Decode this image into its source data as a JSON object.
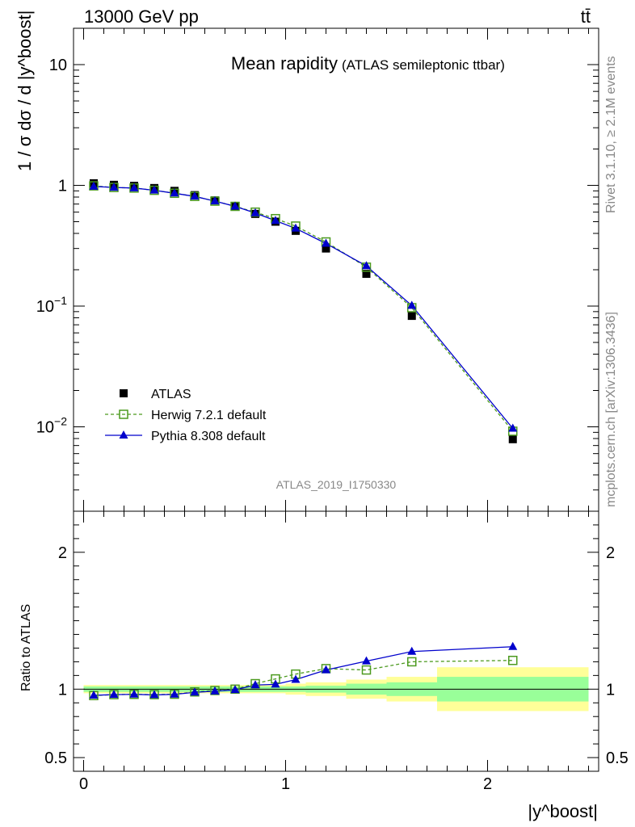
{
  "header": {
    "energy_label": "13000 GeV pp",
    "process_label": "tt̄"
  },
  "side_text": {
    "rivet": "Rivet 3.1.10, ≥ 2.1M events",
    "mcplots": "mcplots.cern.ch [arXiv:1306.3436]"
  },
  "colors": {
    "data": "#000000",
    "herwig": "#4c9a1f",
    "pythia": "#0000cc",
    "band_inner": "#99ff99",
    "band_outer": "#ffff99"
  },
  "chart_data": [
    {
      "type": "scatter",
      "title": "Mean rapidity",
      "subtitle": "(ATLAS semileptonic ttbar)",
      "ylabel": "1 / σ dσ / d |y^boost|",
      "xlabel": "|y^boost|",
      "yscale": "log",
      "ylim": [
        0.002,
        20
      ],
      "xlim": [
        -0.05,
        2.55
      ],
      "y_ticks": [
        {
          "value": 10,
          "label": "10",
          "sup": ""
        },
        {
          "value": 1,
          "label": "1",
          "sup": ""
        },
        {
          "value": 0.1,
          "label": "10",
          "sup": "−1"
        },
        {
          "value": 0.01,
          "label": "10",
          "sup": "−2"
        }
      ],
      "analysis_id": "ATLAS_2019_I1750330",
      "legend_position": "bottom-left",
      "x": [
        0.05,
        0.15,
        0.25,
        0.35,
        0.45,
        0.55,
        0.65,
        0.75,
        0.85,
        0.95,
        1.05,
        1.2,
        1.4,
        1.625,
        2.125
      ],
      "series": [
        {
          "name": "ATLAS",
          "style": "data",
          "values": [
            1.04,
            1.01,
            0.99,
            0.95,
            0.9,
            0.83,
            0.75,
            0.67,
            0.58,
            0.5,
            0.42,
            0.3,
            0.185,
            0.083,
            0.0079
          ]
        },
        {
          "name": "Herwig 7.2.1 default",
          "style": "herwig",
          "values": [
            0.99,
            0.96,
            0.95,
            0.91,
            0.86,
            0.81,
            0.74,
            0.67,
            0.6,
            0.53,
            0.46,
            0.34,
            0.21,
            0.097,
            0.0092
          ]
        },
        {
          "name": "Pythia 8.308 default",
          "style": "pythia",
          "values": [
            0.98,
            0.96,
            0.95,
            0.91,
            0.86,
            0.81,
            0.74,
            0.67,
            0.59,
            0.51,
            0.44,
            0.33,
            0.215,
            0.101,
            0.0097
          ]
        }
      ]
    },
    {
      "type": "scatter",
      "ylabel": "Ratio to ATLAS",
      "xlabel": "|y^boost|",
      "ylim": [
        0.4,
        2.3
      ],
      "xlim": [
        -0.05,
        2.55
      ],
      "y_ticks": [
        0.5,
        1,
        2
      ],
      "y_tick_labels": [
        "0.5",
        "1",
        "2"
      ],
      "x_ticks": [
        0,
        1,
        2
      ],
      "x_tick_labels": [
        "0",
        "1",
        "2"
      ],
      "x": [
        0.05,
        0.15,
        0.25,
        0.35,
        0.45,
        0.55,
        0.65,
        0.75,
        0.85,
        0.95,
        1.05,
        1.2,
        1.4,
        1.625,
        2.125
      ],
      "uncertainty_bands": [
        {
          "x_range": [
            0.0,
            1.0
          ],
          "inner": [
            0.98,
            1.02
          ],
          "outer": [
            0.97,
            1.03
          ]
        },
        {
          "x_range": [
            1.0,
            1.1
          ],
          "inner": [
            0.98,
            1.02
          ],
          "outer": [
            0.96,
            1.04
          ]
        },
        {
          "x_range": [
            1.1,
            1.3
          ],
          "inner": [
            0.975,
            1.025
          ],
          "outer": [
            0.95,
            1.05
          ]
        },
        {
          "x_range": [
            1.3,
            1.5
          ],
          "inner": [
            0.96,
            1.04
          ],
          "outer": [
            0.93,
            1.07
          ]
        },
        {
          "x_range": [
            1.5,
            1.75
          ],
          "inner": [
            0.95,
            1.05
          ],
          "outer": [
            0.91,
            1.09
          ]
        },
        {
          "x_range": [
            1.75,
            2.5
          ],
          "inner": [
            0.91,
            1.09
          ],
          "outer": [
            0.84,
            1.16
          ]
        }
      ],
      "series": [
        {
          "name": "Herwig 7.2.1 default",
          "style": "herwig",
          "values": [
            0.953,
            0.96,
            0.962,
            0.96,
            0.963,
            0.98,
            0.99,
            1.0,
            1.04,
            1.075,
            1.11,
            1.15,
            1.14,
            1.2,
            1.21
          ]
        },
        {
          "name": "Pythia 8.308 default",
          "style": "pythia",
          "values": [
            0.955,
            0.96,
            0.962,
            0.958,
            0.962,
            0.977,
            0.985,
            0.995,
            1.03,
            1.035,
            1.07,
            1.14,
            1.205,
            1.275,
            1.31
          ]
        }
      ]
    }
  ]
}
